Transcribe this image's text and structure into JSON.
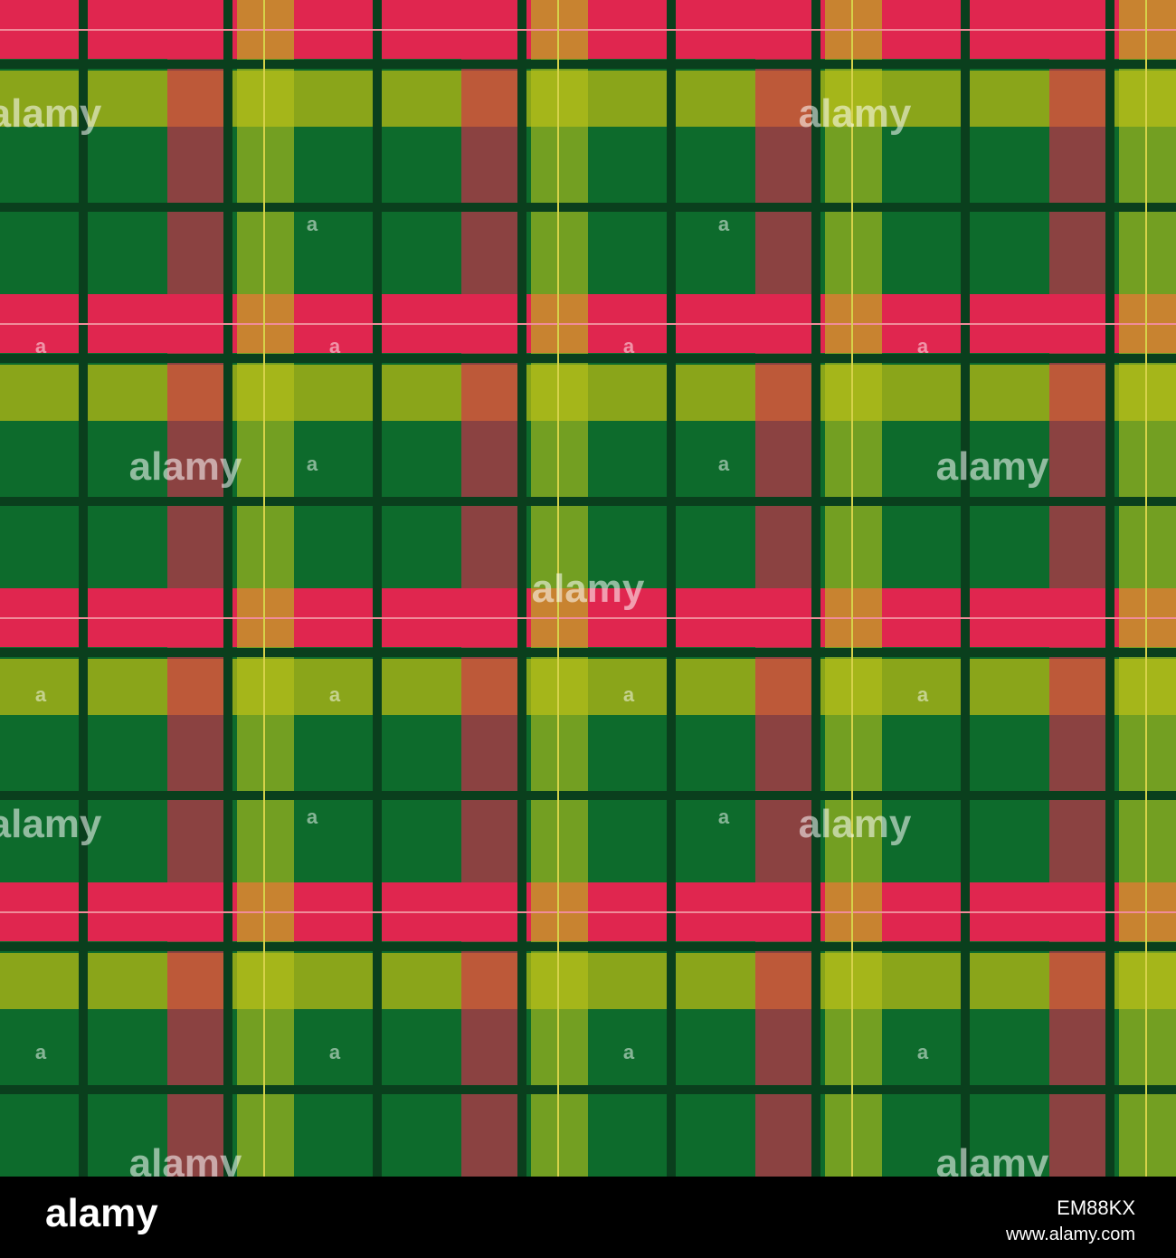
{
  "watermark": "alamy",
  "watermark_mark": "a",
  "footer": {
    "logo": "alamy",
    "image_id": "EM88KX",
    "url": "www.alamy.com"
  }
}
